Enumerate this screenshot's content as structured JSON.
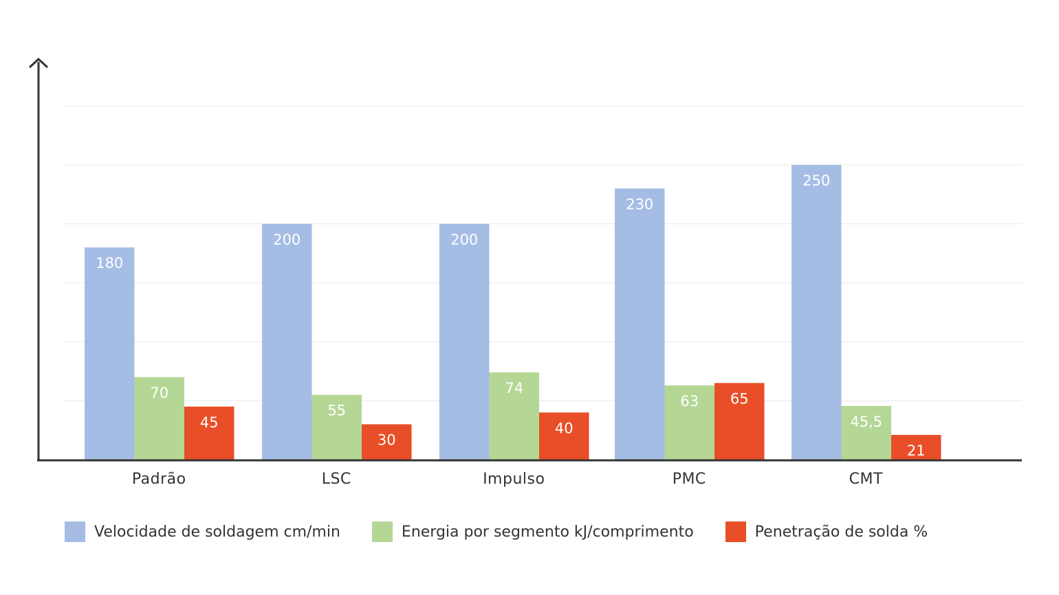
{
  "chart_data": {
    "type": "bar",
    "categories": [
      "Padrão",
      "LSC",
      "Impulso",
      "PMC",
      "CMT"
    ],
    "series": [
      {
        "name": "Velocidade de soldagem cm/min",
        "color": "#a5bde4",
        "values": [
          180,
          200,
          200,
          230,
          250
        ],
        "labels": [
          "180",
          "200",
          "200",
          "230",
          "250"
        ]
      },
      {
        "name": "Energia por segmento kJ/comprimento",
        "color": "#b5d795",
        "values": [
          70,
          55,
          74,
          63,
          45.5
        ],
        "labels": [
          "70",
          "55",
          "74",
          "63",
          "45,5"
        ]
      },
      {
        "name": "Penetração de solda %",
        "color": "#e84e27",
        "values": [
          45,
          30,
          40,
          65,
          21
        ],
        "labels": [
          "45",
          "30",
          "40",
          "65",
          "21"
        ]
      }
    ],
    "title": "",
    "xlabel": "",
    "ylabel": "",
    "ylim": [
      0,
      300
    ],
    "grid": true,
    "legend_position": "bottom"
  }
}
